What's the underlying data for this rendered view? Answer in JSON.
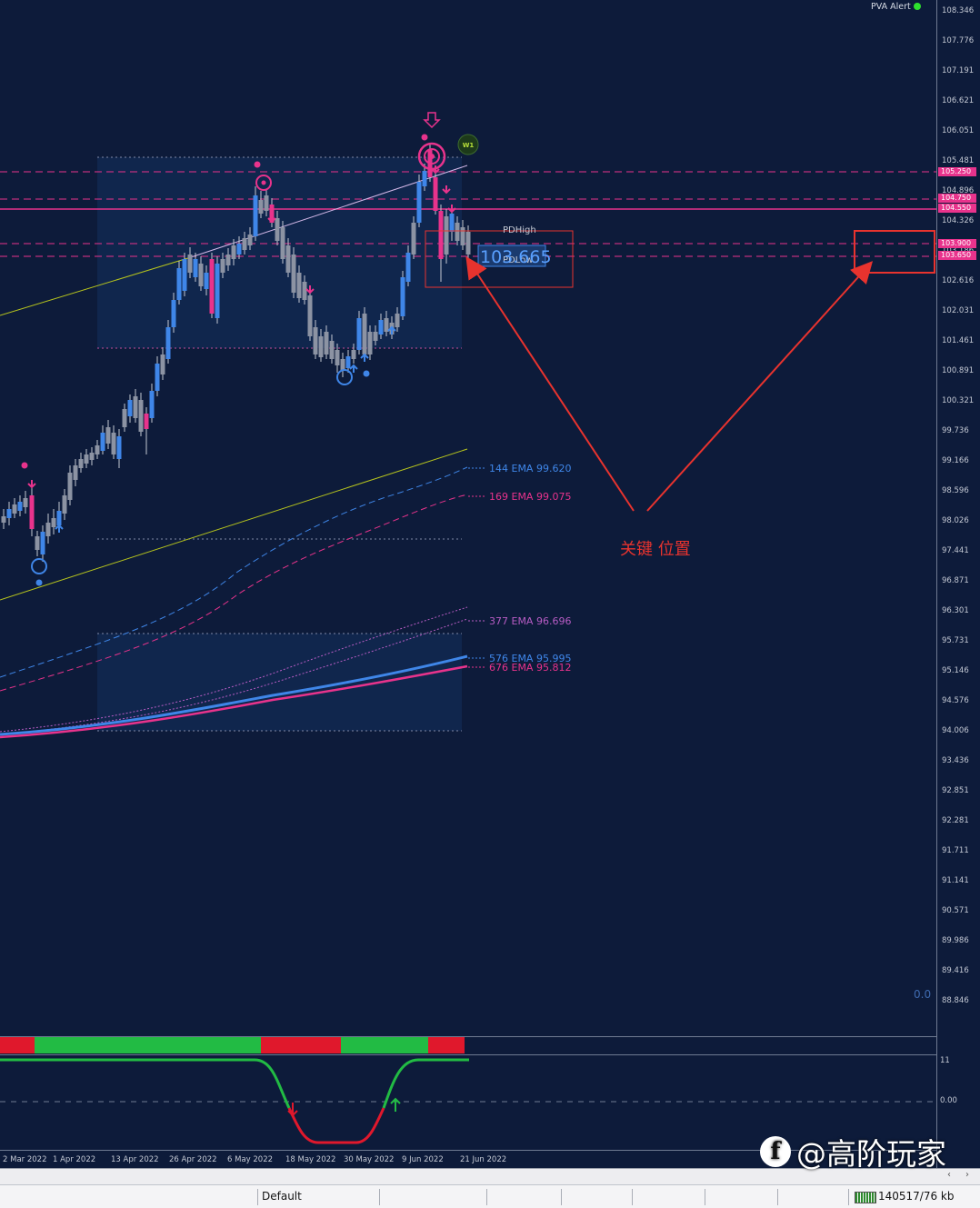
{
  "alert": {
    "label": "PVA Alert"
  },
  "price_axis": {
    "labels": [
      "108.346",
      "107.776",
      "107.191",
      "106.621",
      "106.051",
      "105.481",
      "104.896",
      "104.326",
      "103.186",
      "102.616",
      "102.031",
      "101.461",
      "100.891",
      "100.321",
      "99.736",
      "99.166",
      "98.596",
      "98.026",
      "97.441",
      "96.871",
      "96.301",
      "95.731",
      "95.146",
      "94.576",
      "94.006",
      "93.436",
      "92.851",
      "92.281",
      "91.711",
      "91.141",
      "90.571",
      "89.986",
      "89.416",
      "88.846"
    ],
    "tags": [
      "105.250",
      "104.750",
      "104.550",
      "103.900",
      "103.650"
    ]
  },
  "chart": {
    "pd_high_label": "PDHigh",
    "pd_low_label": "PDLow",
    "current_price": "103.665",
    "w1_badge": "W1",
    "annotation": "关键 位置",
    "corner_value": "0.0",
    "ema_labels": [
      {
        "text": "144 EMA 99.620",
        "color": "#3f86e8"
      },
      {
        "text": "169 EMA 99.075",
        "color": "#e8338c"
      },
      {
        "text": "377 EMA 96.696",
        "color": "#b75cc4"
      },
      {
        "text": "576 EMA 95.995",
        "color": "#3f86e8"
      },
      {
        "text": "676 EMA 95.812",
        "color": "#e8338c"
      }
    ],
    "colors": {
      "bull": "#3f86e8",
      "bear": "#e8338c",
      "neutral": "#8c93a3",
      "trend": "#b7c51d",
      "annotation": "#e8332e"
    }
  },
  "indicator": {
    "segments": [
      {
        "state": "bear",
        "color": "#e0182c"
      },
      {
        "state": "bull",
        "color": "#22bb44"
      },
      {
        "state": "bear",
        "color": "#e0182c"
      },
      {
        "state": "bull",
        "color": "#22bb44"
      },
      {
        "state": "bear",
        "color": "#e0182c"
      }
    ],
    "axis_label": "0"
  },
  "oscillator": {
    "upper_label": "11",
    "zero_label": "0.00"
  },
  "time_axis": {
    "labels": [
      "2 Mar 2022",
      "1 Apr 2022",
      "13 Apr 2022",
      "26 Apr 2022",
      "6 May 2022",
      "18 May 2022",
      "30 May 2022",
      "9 Jun 2022",
      "21 Jun 2022"
    ]
  },
  "status_bar": {
    "profile": "Default",
    "connection": "140517/76 kb"
  },
  "watermark": {
    "logo": "f",
    "text": "@高阶玩家"
  }
}
